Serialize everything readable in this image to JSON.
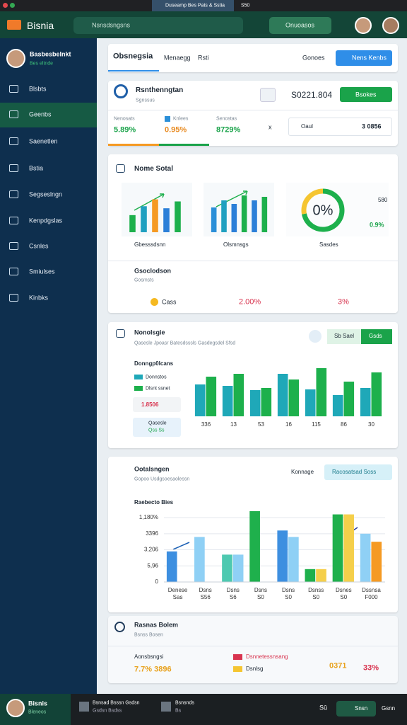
{
  "browser": {
    "tab": "Duseamp Bes Pats & Sstia",
    "tab2": "S50"
  },
  "header": {
    "brand": "Bisnia",
    "search": "Nsnsdsngsns",
    "button": "Onuoasos"
  },
  "sidebar": {
    "user": {
      "name": "Basbesbelnkt",
      "status": "Bes eltnde"
    },
    "items": [
      "Blsbts",
      "Geenbs",
      "Saenetlen",
      "Bstia",
      "Segseslngn",
      "Kenpdgslas",
      "Csnles",
      "Smiulses",
      "Kinbks"
    ]
  },
  "tabs": {
    "items": [
      "Obsnegsia",
      "Menaegg",
      "Rsti"
    ],
    "right": "Gonoes",
    "button": "Nens Kenbs"
  },
  "summary": {
    "title": "Rsnthenngtan",
    "subtitle": "Sgnssus",
    "amount": "S0221.804",
    "button": "Bsokes",
    "stats": [
      {
        "label": "Nenosats",
        "value": "5.89%"
      },
      {
        "label": "Knlees",
        "value": "0.95%"
      },
      {
        "label": "Senostas",
        "value": "8729%"
      }
    ],
    "close": "x",
    "box": {
      "label": "Oaul",
      "value": "3 0856"
    }
  },
  "overview": {
    "title": "Nome Sotal",
    "right_value": "580",
    "right_pct": "0.9%",
    "chart_labels": [
      "Gbesssdsnn",
      "Olsmnsgs",
      "Sasdes"
    ],
    "section": {
      "title": "Gsoclodson",
      "subtitle": "Gosmsts",
      "row": {
        "label": "Cass",
        "a": "2.00%",
        "b": "3%"
      }
    }
  },
  "analysis": {
    "title": "Nonolsgie",
    "subtitle": "Qasesle Jpoasr Batesdsssls Gasdegsdel Sfsd",
    "toggle": [
      "Sb Sael",
      "Gsds"
    ],
    "chart_title": "Donngp0lcans",
    "box1": "1.8506",
    "box2": [
      "Qasesle",
      "Qss Ss"
    ]
  },
  "report": {
    "title": "Ootalsngen",
    "subtitle": "Gopoo Usdgsoesaolessn",
    "right": "Konnage",
    "button": "Racosatsad Soss",
    "chart_title": "Raebecto Bies"
  },
  "footer_card": {
    "title": "Rasnas Bolem",
    "subtitle": "Bsnss Bosen",
    "row_title": "Aonsbsngsi",
    "row_value": "7.7% 3896",
    "legend": [
      "Dsnnetessnsang",
      "Dsnlsg"
    ],
    "v1": "0371",
    "v2": "33%"
  },
  "bottom_bar": {
    "name": "Bisnis",
    "sub": "Bleneos",
    "items": [
      [
        "Bsnsad Bsssn Gsdsn",
        "Gsdsn Bsdss"
      ],
      [
        "Bsnsnds",
        "Bs"
      ]
    ],
    "icon_text": "Sû",
    "button": "Snsn",
    "link": "Gsnn"
  },
  "chart_data": [
    {
      "type": "bar",
      "values": [
        25,
        38,
        48,
        35,
        45
      ],
      "colors": [
        "#1db04c",
        "#20a0c0",
        "#f59a23",
        "#2b7fd8",
        "#1db04c"
      ],
      "ylim": [
        0,
        60
      ]
    },
    {
      "type": "bar",
      "values": [
        35,
        45,
        40,
        52,
        45,
        50
      ],
      "colors": [
        "#2b8fd8",
        "#20a0c0",
        "#2b7fd8",
        "#1db04c",
        "#2b7fd8",
        "#1db04c"
      ],
      "ylim": [
        0,
        60
      ]
    },
    {
      "type": "donut",
      "center_label": "0%",
      "values": [
        72,
        28
      ],
      "colors": [
        "#1db04c",
        "#f5c531"
      ]
    },
    {
      "type": "bar",
      "categories": [
        "336",
        "13",
        "53",
        "16",
        "115",
        "86",
        "30"
      ],
      "series": [
        {
          "name": "Donnstos",
          "color": "#1fa8b8",
          "values": [
            45,
            43,
            37,
            60,
            38,
            30,
            40
          ]
        },
        {
          "name": "Dlsnt ssnet",
          "color": "#1db04c",
          "values": [
            56,
            60,
            40,
            52,
            68,
            49,
            62
          ]
        }
      ],
      "ylim": [
        0,
        70
      ]
    },
    {
      "type": "bar",
      "categories": [
        "Denese",
        "Dsns",
        "Dsns",
        "Dsns",
        "Dsns",
        "Dsnss",
        "Dsnes",
        "Dssnsa"
      ],
      "sublabels": [
        "Sas",
        "S56",
        "S6",
        "S0",
        "S0",
        "S0",
        "S0",
        "F000"
      ],
      "series": [
        {
          "colors": [
            "#3d8fe0",
            "#8fd0f5",
            "#4ec9b0",
            "#1fb04c",
            "#3d8fe0",
            "#1fb04c",
            "#1fb04c",
            "#8fd0f5"
          ],
          "values": [
            1.9,
            2.8,
            1.7,
            4.4,
            3.2,
            0.8,
            4.2,
            3.0
          ]
        },
        {
          "colors": [
            null,
            null,
            "#8fd0f5",
            null,
            "#8fd0f5",
            "#f5cf4a",
            "#f5cf4a",
            "#f59a23"
          ],
          "values": [
            null,
            null,
            1.7,
            null,
            2.8,
            0.8,
            4.2,
            2.5
          ]
        }
      ],
      "ylim": [
        0,
        4.4
      ],
      "yticks": [
        0,
        {
          "value": 1,
          "label": "5,96"
        },
        {
          "value": 2,
          "label": "3,206"
        },
        {
          "value": 3,
          "label": "3396"
        },
        {
          "value": 4,
          "label": "1,180%"
        }
      ]
    }
  ]
}
